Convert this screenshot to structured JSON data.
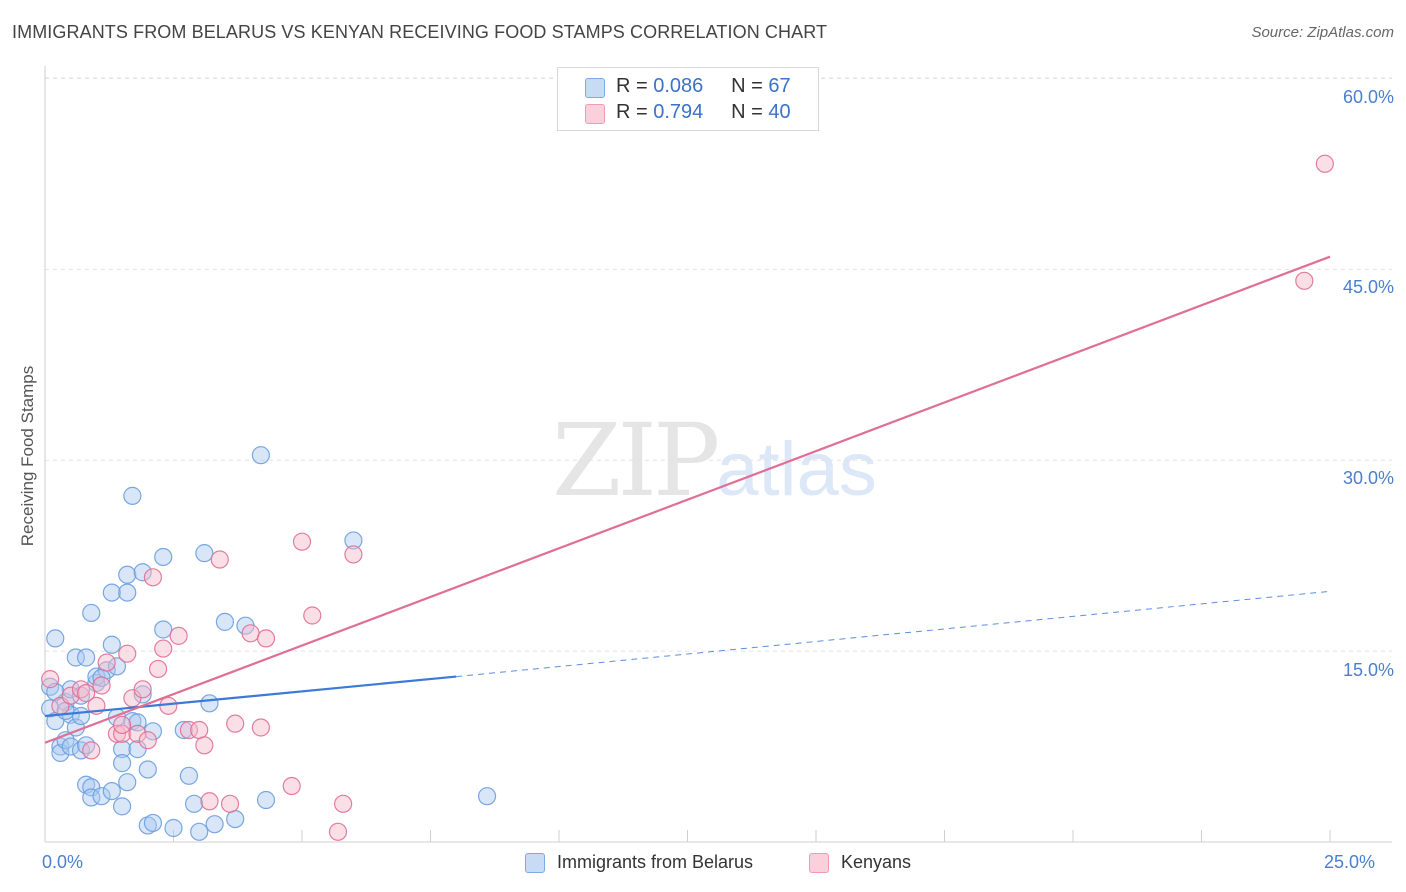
{
  "title": "IMMIGRANTS FROM BELARUS VS KENYAN RECEIVING FOOD STAMPS CORRELATION CHART",
  "source": "Source: ZipAtlas.com",
  "watermark": {
    "zip": "ZIP",
    "atlas": "atlas"
  },
  "legend_top": {
    "r_label": "R =",
    "n_label": "N =",
    "rows": [
      {
        "r": "0.086",
        "n": "67",
        "color": "#a9c8f0"
      },
      {
        "r": "0.794",
        "n": "40",
        "color": "#f6b8c9"
      }
    ]
  },
  "chart_data": {
    "type": "scatter",
    "title": "IMMIGRANTS FROM BELARUS VS KENYAN RECEIVING FOOD STAMPS CORRELATION CHART",
    "xlabel": "",
    "ylabel": "Receiving Food Stamps",
    "xlim": [
      0,
      25
    ],
    "ylim": [
      0,
      60
    ],
    "x_tick_labels": [
      "0.0%",
      "25.0%"
    ],
    "y_tick_labels": [
      "15.0%",
      "30.0%",
      "45.0%",
      "60.0%"
    ],
    "y_ticks": [
      15,
      30,
      45,
      60
    ],
    "grid": true,
    "series": [
      {
        "name": "Immigrants from Belarus",
        "color": "#6a9fe0",
        "fill": "#a9c8f0",
        "trend": {
          "x": [
            0,
            8
          ],
          "y": [
            9.9,
            13.0
          ],
          "dashed_to": [
            25,
            19.7
          ]
        },
        "points": [
          [
            0.1,
            10.5
          ],
          [
            0.1,
            12.2
          ],
          [
            0.2,
            16.0
          ],
          [
            0.2,
            9.5
          ],
          [
            0.3,
            7.5
          ],
          [
            0.3,
            7.0
          ],
          [
            0.4,
            11.0
          ],
          [
            0.4,
            8.0
          ],
          [
            0.5,
            7.5
          ],
          [
            0.5,
            12.0
          ],
          [
            0.5,
            10.0
          ],
          [
            0.6,
            14.5
          ],
          [
            0.6,
            9.0
          ],
          [
            0.7,
            11.5
          ],
          [
            0.7,
            7.2
          ],
          [
            0.8,
            14.5
          ],
          [
            0.8,
            4.5
          ],
          [
            0.8,
            7.6
          ],
          [
            0.9,
            18.0
          ],
          [
            0.9,
            4.3
          ],
          [
            0.9,
            3.5
          ],
          [
            1.0,
            12.5
          ],
          [
            1.0,
            13.0
          ],
          [
            1.1,
            3.6
          ],
          [
            1.2,
            13.5
          ],
          [
            1.3,
            15.5
          ],
          [
            1.3,
            4.0
          ],
          [
            1.3,
            19.6
          ],
          [
            1.4,
            9.8
          ],
          [
            1.4,
            13.8
          ],
          [
            1.5,
            7.3
          ],
          [
            1.5,
            6.2
          ],
          [
            1.5,
            2.8
          ],
          [
            1.6,
            21.0
          ],
          [
            1.6,
            19.6
          ],
          [
            1.6,
            4.7
          ],
          [
            1.7,
            27.2
          ],
          [
            1.7,
            9.5
          ],
          [
            1.8,
            7.3
          ],
          [
            1.9,
            21.2
          ],
          [
            1.9,
            11.6
          ],
          [
            2.0,
            5.7
          ],
          [
            2.0,
            1.3
          ],
          [
            2.1,
            1.5
          ],
          [
            2.1,
            8.7
          ],
          [
            2.3,
            16.7
          ],
          [
            2.3,
            22.4
          ],
          [
            2.5,
            1.1
          ],
          [
            2.8,
            5.2
          ],
          [
            2.9,
            3.0
          ],
          [
            3.0,
            0.8
          ],
          [
            3.1,
            22.7
          ],
          [
            3.2,
            10.9
          ],
          [
            3.3,
            1.4
          ],
          [
            3.5,
            17.3
          ],
          [
            3.7,
            1.8
          ],
          [
            3.9,
            17.0
          ],
          [
            4.2,
            30.4
          ],
          [
            4.3,
            3.3
          ],
          [
            6.0,
            23.7
          ],
          [
            8.6,
            3.6
          ],
          [
            0.2,
            11.8
          ],
          [
            0.4,
            10.3
          ],
          [
            1.1,
            12.9
          ],
          [
            0.7,
            9.9
          ],
          [
            1.8,
            9.4
          ],
          [
            2.7,
            8.8
          ]
        ]
      },
      {
        "name": "Kenyans",
        "color": "#e06f95",
        "fill": "#f6b8c9",
        "trend": {
          "x": [
            0,
            25
          ],
          "y": [
            7.8,
            46.0
          ]
        },
        "points": [
          [
            0.1,
            12.8
          ],
          [
            0.3,
            10.7
          ],
          [
            0.5,
            11.5
          ],
          [
            0.7,
            12.0
          ],
          [
            0.8,
            11.7
          ],
          [
            0.9,
            7.2
          ],
          [
            1.0,
            10.7
          ],
          [
            1.1,
            12.3
          ],
          [
            1.2,
            14.1
          ],
          [
            1.4,
            8.5
          ],
          [
            1.5,
            8.5
          ],
          [
            1.5,
            9.2
          ],
          [
            1.6,
            14.8
          ],
          [
            1.7,
            11.3
          ],
          [
            1.8,
            8.5
          ],
          [
            1.9,
            12.0
          ],
          [
            2.1,
            20.8
          ],
          [
            2.2,
            13.6
          ],
          [
            2.3,
            15.2
          ],
          [
            2.4,
            10.7
          ],
          [
            2.6,
            16.2
          ],
          [
            2.8,
            8.8
          ],
          [
            3.0,
            8.8
          ],
          [
            3.1,
            7.6
          ],
          [
            3.2,
            3.2
          ],
          [
            3.4,
            22.2
          ],
          [
            3.6,
            3.0
          ],
          [
            3.7,
            9.3
          ],
          [
            4.0,
            16.4
          ],
          [
            4.2,
            9.0
          ],
          [
            4.3,
            16.0
          ],
          [
            4.8,
            4.4
          ],
          [
            5.0,
            23.6
          ],
          [
            5.2,
            17.8
          ],
          [
            5.7,
            0.8
          ],
          [
            5.8,
            3.0
          ],
          [
            6.0,
            22.6
          ],
          [
            24.5,
            44.1
          ],
          [
            24.9,
            53.3
          ],
          [
            2.0,
            8.0
          ]
        ]
      }
    ]
  }
}
